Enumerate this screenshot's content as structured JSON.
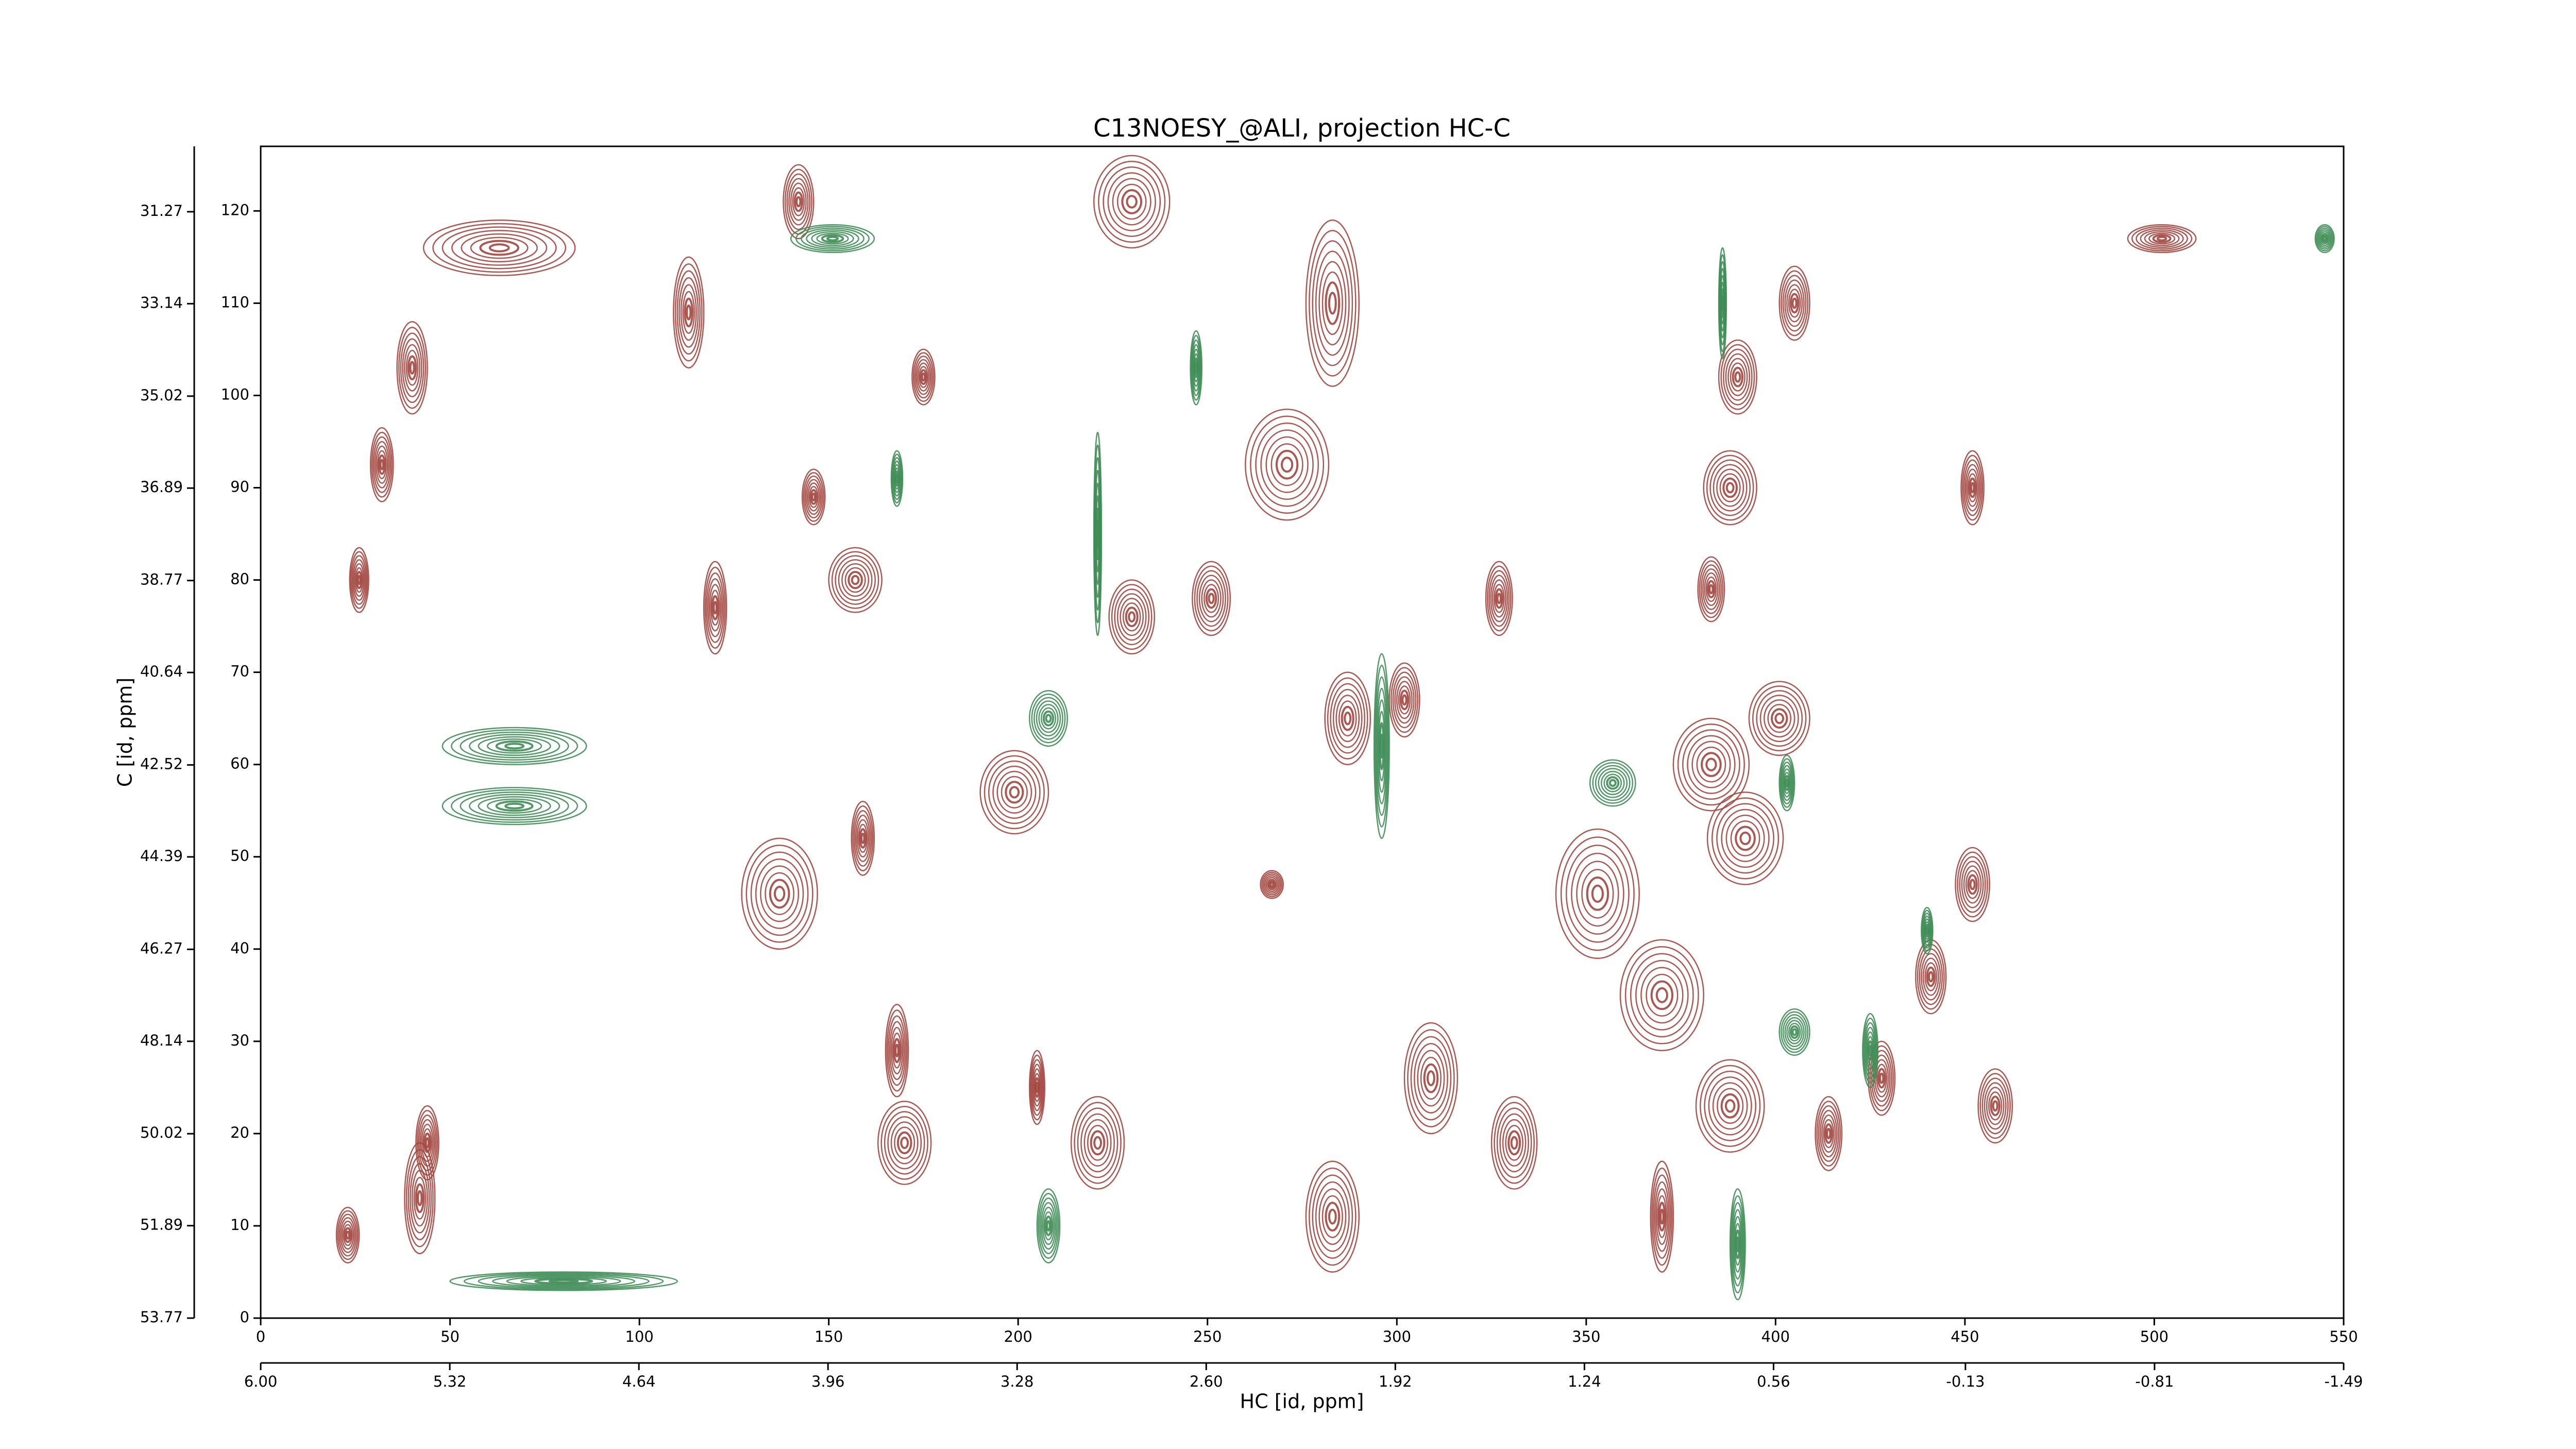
{
  "chart_data": {
    "type": "contour",
    "title": "C13NOESY_@ALI, projection HC-C",
    "x_label": "HC [id, ppm]",
    "y_label": "C [id, ppm]",
    "xlim": [
      0,
      550
    ],
    "ylim": [
      0,
      127
    ],
    "xticks": [
      0,
      50,
      100,
      150,
      200,
      250,
      300,
      350,
      400,
      450,
      500,
      550
    ],
    "yticks": [
      0,
      10,
      20,
      30,
      40,
      50,
      60,
      70,
      80,
      90,
      100,
      110,
      120
    ],
    "x2lim": [
      6,
      -1.49
    ],
    "x2ticks": [
      {
        "value": 6,
        "label": "6.00"
      },
      5.32,
      4.64,
      3.96,
      3.28,
      {
        "value": 2.6,
        "label": "2.60"
      },
      1.92,
      1.24,
      0.56,
      -0.13,
      -0.81,
      -1.49
    ],
    "y2lim": [
      53.77,
      29.94
    ],
    "y2ticks": [
      53.77,
      51.89,
      50.02,
      48.14,
      46.27,
      44.39,
      42.52,
      40.64,
      38.77,
      36.89,
      35.02,
      33.14,
      31.27
    ],
    "series": [
      {
        "color": "#a3463f",
        "x": [
          32,
          26,
          40,
          42,
          23,
          44,
          63,
          113,
          142,
          120,
          157,
          137,
          159,
          168,
          170,
          146,
          175,
          199,
          230,
          230,
          221,
          205,
          271,
          283,
          251,
          267,
          287,
          302,
          327,
          283,
          309,
          331,
          353,
          370,
          383,
          401,
          390,
          405,
          388,
          383,
          388,
          414,
          428,
          441,
          458,
          452,
          452,
          502,
          392,
          370
        ],
        "y": [
          92.5,
          80,
          103,
          13,
          9,
          19,
          116,
          109,
          121,
          77,
          80,
          46,
          52,
          29,
          19,
          89,
          102,
          57,
          121,
          76,
          19,
          25,
          92.5,
          110,
          78,
          47,
          65,
          67,
          78,
          11,
          26,
          19,
          46,
          35,
          60,
          65,
          102,
          110,
          90,
          79,
          23,
          20,
          26,
          37,
          23,
          47,
          90,
          117,
          52,
          11
        ],
        "width": [
          6,
          5,
          8,
          8,
          6,
          6,
          40,
          8,
          8,
          6,
          14,
          20,
          6,
          6,
          14,
          6,
          6,
          18,
          20,
          12,
          14,
          4,
          22,
          14,
          10,
          6,
          12,
          8,
          7,
          14,
          14,
          12,
          22,
          22,
          20,
          16,
          10,
          8,
          14,
          7,
          18,
          7,
          7,
          8,
          9,
          9,
          6,
          18,
          20,
          6
        ],
        "height": [
          8,
          7,
          10,
          12,
          6,
          8,
          6,
          12,
          8,
          10,
          7,
          12,
          8,
          10,
          9,
          6,
          6,
          9,
          10,
          8,
          10,
          8,
          12,
          18,
          8,
          3,
          10,
          8,
          8,
          12,
          12,
          10,
          14,
          12,
          10,
          8,
          8,
          8,
          8,
          7,
          10,
          8,
          8,
          8,
          8,
          8,
          8,
          3,
          10,
          12
        ]
      },
      {
        "color": "#3f8d57",
        "x": [
          67,
          67,
          151,
          221,
          296,
          386,
          390,
          208,
          357,
          405,
          425,
          168,
          247,
          545,
          80,
          208,
          440,
          403
        ],
        "y": [
          62,
          55.5,
          117,
          85,
          62,
          110,
          8,
          65,
          58,
          31,
          29,
          91,
          103,
          117,
          4,
          10,
          42,
          58
        ],
        "width": [
          38,
          38,
          22,
          2,
          4,
          2,
          4,
          10,
          12,
          8,
          4,
          3,
          3,
          5,
          60,
          6,
          3,
          4
        ],
        "height": [
          4,
          4,
          3,
          22,
          20,
          12,
          12,
          6,
          5,
          5,
          8,
          6,
          8,
          3,
          2,
          8,
          5,
          6
        ]
      }
    ]
  }
}
